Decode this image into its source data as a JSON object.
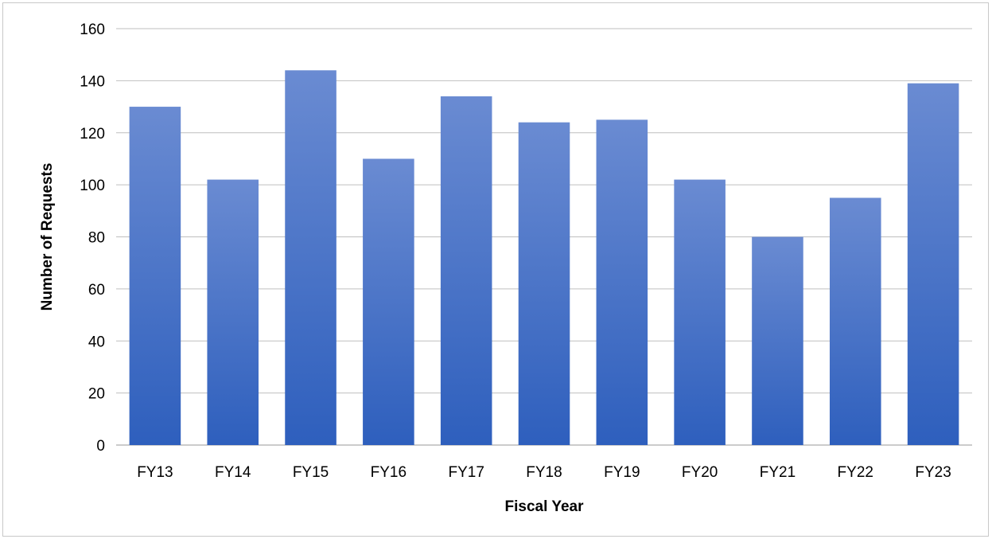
{
  "chart_data": {
    "type": "bar",
    "title": "",
    "xlabel": "Fiscal Year",
    "ylabel": "Number of Requests",
    "categories": [
      "FY13",
      "FY14",
      "FY15",
      "FY16",
      "FY17",
      "FY18",
      "FY19",
      "FY20",
      "FY21",
      "FY22",
      "FY23"
    ],
    "values": [
      130,
      102,
      144,
      110,
      134,
      124,
      125,
      102,
      80,
      95,
      139
    ],
    "ylim": [
      0,
      160
    ],
    "yticks": [
      0,
      20,
      40,
      60,
      80,
      100,
      120,
      140,
      160
    ],
    "grid": true,
    "legend": "none",
    "colors": {
      "bar_top": "#6a8bd2",
      "bar_bottom": "#2e5fbd",
      "grid": "#bfbfbf",
      "text": "#000000"
    }
  }
}
